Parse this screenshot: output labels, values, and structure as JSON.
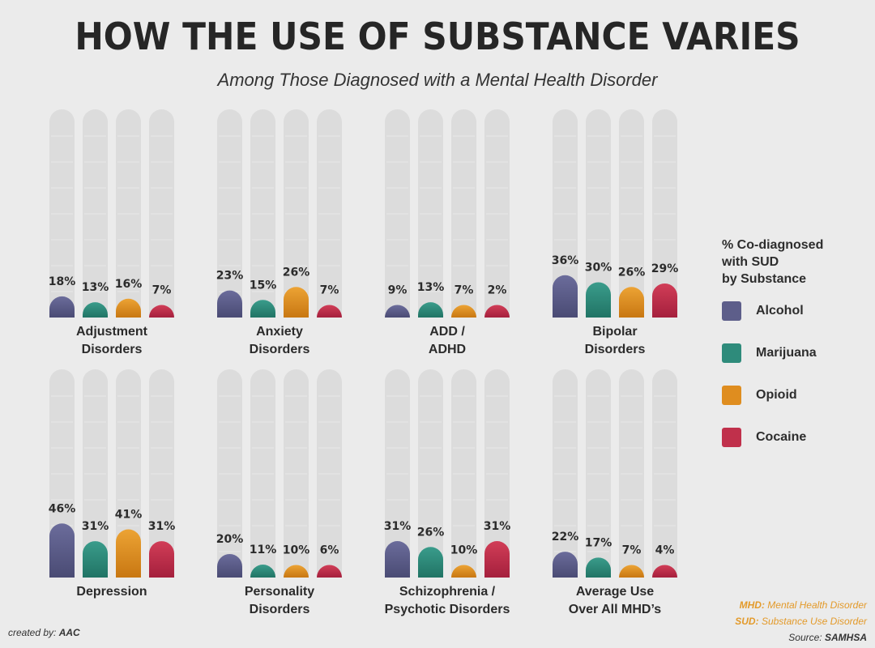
{
  "title": "HOW THE USE OF SUBSTANCE VARIES",
  "subtitle": "Among Those Diagnosed with a Mental Health Disorder",
  "legend": {
    "title": "% Co-diagnosed\nwith SUD\nby Substance",
    "items": [
      {
        "label": "Alcohol",
        "color": "#5d5e8a"
      },
      {
        "label": "Marijuana",
        "color": "#2e8b7b"
      },
      {
        "label": "Opioid",
        "color": "#df8d1f"
      },
      {
        "label": "Cocaine",
        "color": "#c0304b"
      }
    ]
  },
  "notes": {
    "mhd_abbr": "MHD:",
    "mhd_text": "Mental Health Disorder",
    "sud_abbr": "SUD:",
    "sud_text": "Substance Use Disorder",
    "source_label": "Source:",
    "source_value": "SAMHSA"
  },
  "credit": {
    "label": "created by:",
    "value": "AAC"
  },
  "chart_data": {
    "type": "bar",
    "ylim": [
      0,
      100
    ],
    "value_suffix": "%",
    "series_names": [
      "Alcohol",
      "Marijuana",
      "Opioid",
      "Cocaine"
    ],
    "panels": [
      {
        "label": [
          "Adjustment",
          "Disorders"
        ],
        "values": [
          18,
          13,
          16,
          7
        ]
      },
      {
        "label": [
          "Anxiety",
          "Disorders"
        ],
        "values": [
          23,
          15,
          26,
          7
        ]
      },
      {
        "label": [
          "ADD /",
          "ADHD"
        ],
        "values": [
          9,
          13,
          7,
          2
        ]
      },
      {
        "label": [
          "Bipolar",
          "Disorders"
        ],
        "values": [
          36,
          30,
          26,
          29
        ]
      },
      {
        "label": [
          "Depression"
        ],
        "values": [
          46,
          31,
          41,
          31
        ]
      },
      {
        "label": [
          "Personality",
          "Disorders"
        ],
        "values": [
          20,
          11,
          10,
          6
        ]
      },
      {
        "label": [
          "Schizophrenia /",
          "Psychotic Disorders"
        ],
        "values": [
          31,
          26,
          10,
          31
        ]
      },
      {
        "label": [
          "Average Use",
          "Over All MHD’s"
        ],
        "values": [
          22,
          17,
          7,
          4
        ]
      }
    ]
  }
}
